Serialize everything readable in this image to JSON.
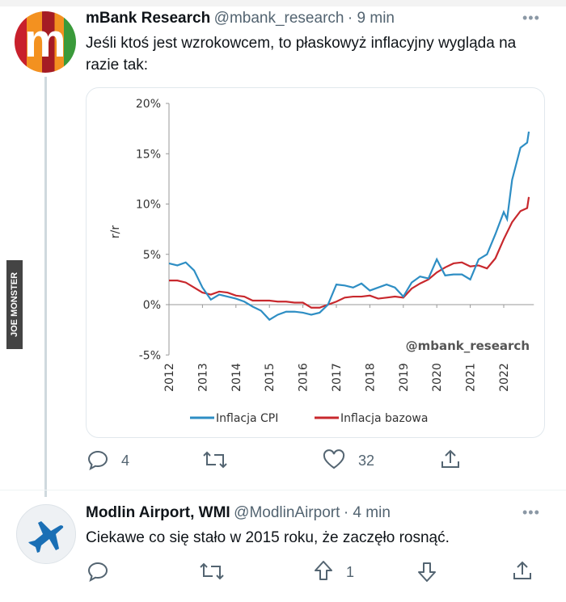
{
  "tweets": [
    {
      "name": "mBank Research",
      "handle": "@mbank_research",
      "time": "· 9 min",
      "text": "Jeśli ktoś jest wzrokowcem, to płaskowyż inflacyjny wygląda na razie tak:",
      "replies": "4",
      "likes": "32"
    },
    {
      "name": "Modlin Airport, WMI",
      "handle": "@ModlinAirport",
      "time": "· 4 min",
      "text": "Ciekawe co się stało w 2015 roku, że zaczęło rosnąć.",
      "votes": "1"
    }
  ],
  "watermark": "JOE MONSTER",
  "colors": {
    "cpi": "#2e8ec4",
    "core": "#c8282d",
    "avatar_plane": "#1a6fb5"
  },
  "chart_data": {
    "type": "line",
    "ylabel": "r/r",
    "ylim": [
      -5,
      20
    ],
    "yticks": [
      "-5%",
      "0%",
      "5%",
      "10%",
      "15%",
      "20%"
    ],
    "yticks_values": [
      -5,
      0,
      5,
      10,
      15,
      20
    ],
    "xticks": [
      "2012",
      "2013",
      "2014",
      "2015",
      "2016",
      "2017",
      "2018",
      "2019",
      "2020",
      "2021",
      "2022"
    ],
    "watermark": "@mbank_research",
    "legend_position": "bottom",
    "series": [
      {
        "name": "Inflacja CPI",
        "color": "#2e8ec4",
        "x": [
          2012,
          2012.25,
          2012.5,
          2012.75,
          2013,
          2013.25,
          2013.5,
          2013.75,
          2014,
          2014.25,
          2014.5,
          2014.75,
          2015,
          2015.25,
          2015.5,
          2015.75,
          2016,
          2016.25,
          2016.5,
          2016.75,
          2017,
          2017.25,
          2017.5,
          2017.75,
          2018,
          2018.25,
          2018.5,
          2018.75,
          2019,
          2019.25,
          2019.5,
          2019.75,
          2020,
          2020.25,
          2020.5,
          2020.75,
          2021,
          2021.25,
          2021.5,
          2021.75,
          2022,
          2022.1,
          2022.25,
          2022.5,
          2022.7,
          2022.75
        ],
        "values": [
          4.1,
          3.9,
          4.2,
          3.4,
          1.7,
          0.5,
          1.0,
          0.8,
          0.6,
          0.3,
          -0.2,
          -0.6,
          -1.5,
          -1.0,
          -0.7,
          -0.7,
          -0.8,
          -1.0,
          -0.8,
          0.0,
          2.0,
          1.9,
          1.7,
          2.1,
          1.4,
          1.7,
          2.0,
          1.7,
          0.8,
          2.2,
          2.8,
          2.6,
          4.5,
          2.9,
          3.0,
          3.0,
          2.5,
          4.5,
          5.0,
          7.0,
          9.2,
          8.5,
          12.4,
          15.6,
          16.1,
          17.2
        ]
      },
      {
        "name": "Inflacja bazowa",
        "color": "#c8282d",
        "x": [
          2012,
          2012.25,
          2012.5,
          2012.75,
          2013,
          2013.25,
          2013.5,
          2013.75,
          2014,
          2014.25,
          2014.5,
          2014.75,
          2015,
          2015.25,
          2015.5,
          2015.75,
          2016,
          2016.25,
          2016.5,
          2016.75,
          2017,
          2017.25,
          2017.5,
          2017.75,
          2018,
          2018.25,
          2018.5,
          2018.75,
          2019,
          2019.25,
          2019.5,
          2019.75,
          2020,
          2020.25,
          2020.5,
          2020.75,
          2021,
          2021.25,
          2021.5,
          2021.75,
          2022,
          2022.25,
          2022.5,
          2022.7,
          2022.75
        ],
        "values": [
          2.4,
          2.4,
          2.2,
          1.7,
          1.2,
          1.0,
          1.3,
          1.2,
          0.9,
          0.8,
          0.4,
          0.4,
          0.4,
          0.3,
          0.3,
          0.2,
          0.2,
          -0.3,
          -0.3,
          0.0,
          0.3,
          0.7,
          0.8,
          0.8,
          0.9,
          0.6,
          0.7,
          0.8,
          0.7,
          1.6,
          2.1,
          2.5,
          3.2,
          3.7,
          4.1,
          4.2,
          3.8,
          3.9,
          3.6,
          4.6,
          6.5,
          8.2,
          9.3,
          9.6,
          10.7
        ]
      }
    ]
  }
}
